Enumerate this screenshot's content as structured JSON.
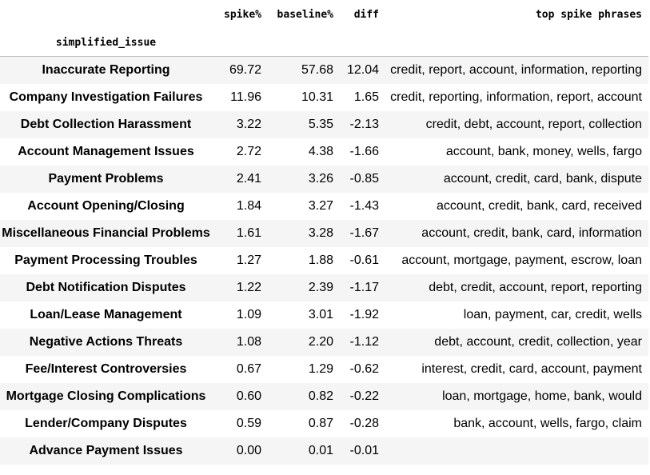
{
  "columns": {
    "spike": "spike%",
    "baseline": "baseline%",
    "diff": "diff",
    "phrases": "top spike phrases",
    "index_name": "simplified_issue"
  },
  "rows": [
    {
      "issue": "Inaccurate Reporting",
      "spike": "69.72",
      "baseline": "57.68",
      "diff": "12.04",
      "phrases": "credit, report, account, information, reporting"
    },
    {
      "issue": "Company Investigation Failures",
      "spike": "11.96",
      "baseline": "10.31",
      "diff": "1.65",
      "phrases": "credit, reporting, information, report, account"
    },
    {
      "issue": "Debt Collection Harassment",
      "spike": "3.22",
      "baseline": "5.35",
      "diff": "-2.13",
      "phrases": "credit, debt, account, report, collection"
    },
    {
      "issue": "Account Management Issues",
      "spike": "2.72",
      "baseline": "4.38",
      "diff": "-1.66",
      "phrases": "account, bank, money, wells, fargo"
    },
    {
      "issue": "Payment Problems",
      "spike": "2.41",
      "baseline": "3.26",
      "diff": "-0.85",
      "phrases": "account, credit, card, bank, dispute"
    },
    {
      "issue": "Account Opening/Closing",
      "spike": "1.84",
      "baseline": "3.27",
      "diff": "-1.43",
      "phrases": "account, credit, bank, card, received"
    },
    {
      "issue": "Miscellaneous Financial Problems",
      "spike": "1.61",
      "baseline": "3.28",
      "diff": "-1.67",
      "phrases": "account, credit, bank, card, information"
    },
    {
      "issue": "Payment Processing Troubles",
      "spike": "1.27",
      "baseline": "1.88",
      "diff": "-0.61",
      "phrases": "account, mortgage, payment, escrow, loan"
    },
    {
      "issue": "Debt Notification Disputes",
      "spike": "1.22",
      "baseline": "2.39",
      "diff": "-1.17",
      "phrases": "debt, credit, account, report, reporting"
    },
    {
      "issue": "Loan/Lease Management",
      "spike": "1.09",
      "baseline": "3.01",
      "diff": "-1.92",
      "phrases": "loan, payment, car, credit, wells"
    },
    {
      "issue": "Negative Actions Threats",
      "spike": "1.08",
      "baseline": "2.20",
      "diff": "-1.12",
      "phrases": "debt, account, credit, collection, year"
    },
    {
      "issue": "Fee/Interest Controversies",
      "spike": "0.67",
      "baseline": "1.29",
      "diff": "-0.62",
      "phrases": "interest, credit, card, account, payment"
    },
    {
      "issue": "Mortgage Closing Complications",
      "spike": "0.60",
      "baseline": "0.82",
      "diff": "-0.22",
      "phrases": "loan, mortgage, home, bank, would"
    },
    {
      "issue": "Lender/Company Disputes",
      "spike": "0.59",
      "baseline": "0.87",
      "diff": "-0.28",
      "phrases": "bank, account, wells, fargo, claim"
    },
    {
      "issue": "Advance Payment Issues",
      "spike": "0.00",
      "baseline": "0.01",
      "diff": "-0.01",
      "phrases": ""
    }
  ]
}
